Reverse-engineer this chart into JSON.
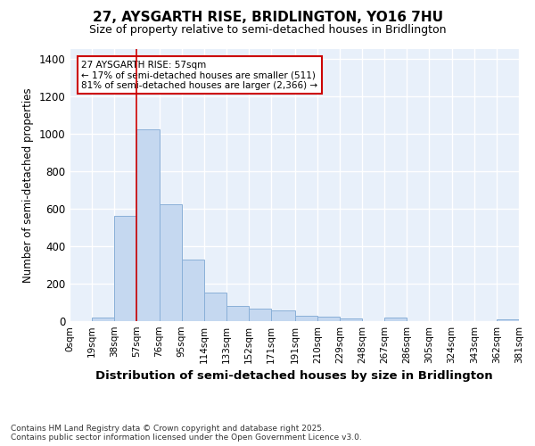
{
  "title": "27, AYSGARTH RISE, BRIDLINGTON, YO16 7HU",
  "subtitle": "Size of property relative to semi-detached houses in Bridlington",
  "xlabel": "Distribution of semi-detached houses by size in Bridlington",
  "ylabel": "Number of semi-detached properties",
  "bar_color": "#c5d8f0",
  "bar_edge_color": "#8ab0d8",
  "bg_color": "#e8f0fa",
  "grid_color": "#ffffff",
  "red_line_x": 57,
  "annotation_text": "27 AYSGARTH RISE: 57sqm\n← 17% of semi-detached houses are smaller (511)\n81% of semi-detached houses are larger (2,366) →",
  "annotation_box_color": "#cc0000",
  "bins": [
    0,
    19,
    38,
    57,
    76,
    95,
    114,
    133,
    152,
    171,
    191,
    210,
    229,
    248,
    267,
    286,
    305,
    324,
    343,
    362,
    381
  ],
  "values": [
    0,
    20,
    560,
    1020,
    625,
    330,
    150,
    80,
    65,
    55,
    30,
    25,
    15,
    0,
    20,
    0,
    0,
    0,
    0,
    10
  ],
  "ylim": [
    0,
    1450
  ],
  "yticks": [
    0,
    200,
    400,
    600,
    800,
    1000,
    1200,
    1400
  ],
  "footnote": "Contains HM Land Registry data © Crown copyright and database right 2025.\nContains public sector information licensed under the Open Government Licence v3.0."
}
